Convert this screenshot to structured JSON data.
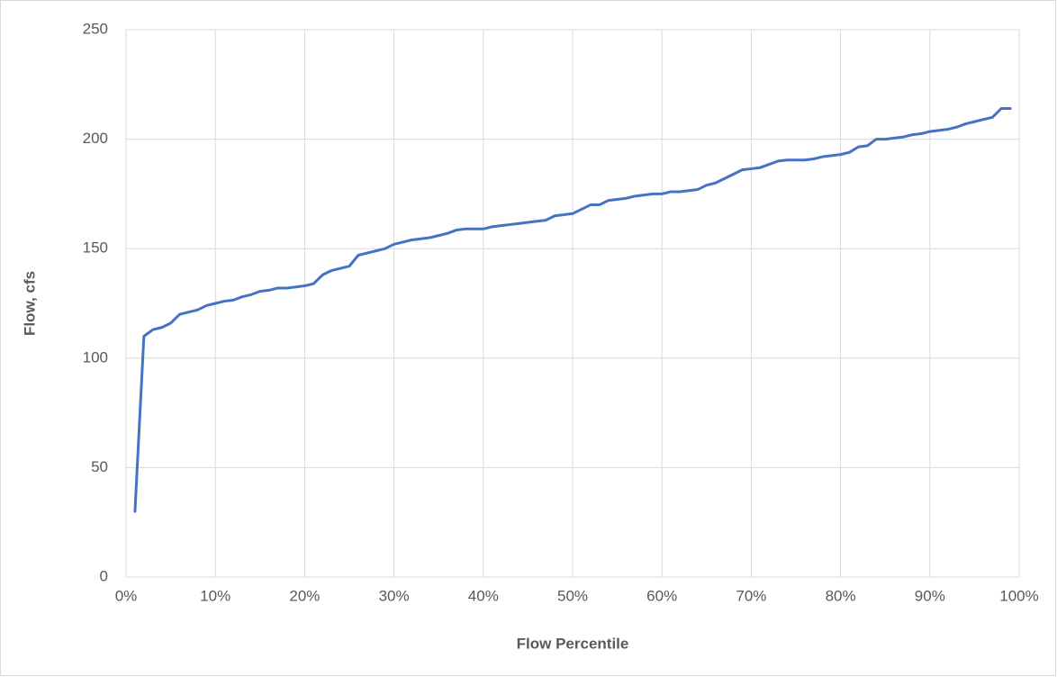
{
  "chart_data": {
    "type": "line",
    "x_label": "Flow Percentile",
    "y_label": "Flow, cfs",
    "x": [
      1,
      2,
      3,
      4,
      5,
      6,
      7,
      8,
      9,
      10,
      11,
      12,
      13,
      14,
      15,
      16,
      17,
      18,
      19,
      20,
      21,
      22,
      23,
      24,
      25,
      26,
      27,
      28,
      29,
      30,
      31,
      32,
      33,
      34,
      35,
      36,
      37,
      38,
      39,
      40,
      41,
      42,
      43,
      44,
      45,
      46,
      47,
      48,
      49,
      50,
      51,
      52,
      53,
      54,
      55,
      56,
      57,
      58,
      59,
      60,
      61,
      62,
      63,
      64,
      65,
      66,
      67,
      68,
      69,
      70,
      71,
      72,
      73,
      74,
      75,
      76,
      77,
      78,
      79,
      80,
      81,
      82,
      83,
      84,
      85,
      86,
      87,
      88,
      89,
      90,
      91,
      92,
      93,
      94,
      95,
      96,
      97,
      98,
      99
    ],
    "series": [
      {
        "name": "Flow",
        "color": "#4472c4",
        "values": [
          30,
          110,
          113,
          114,
          116,
          120,
          121,
          122,
          124,
          125,
          126,
          126.5,
          128,
          129,
          130.5,
          131,
          132,
          132,
          132.5,
          133,
          134,
          138,
          140,
          141,
          142,
          147,
          148,
          149,
          150,
          152,
          153,
          154,
          154.5,
          155,
          156,
          157,
          158.5,
          159,
          159,
          159,
          160,
          160.5,
          161,
          161.5,
          162,
          162.5,
          163,
          165,
          165.5,
          166,
          168,
          170,
          170,
          172,
          172.5,
          173,
          174,
          174.5,
          175,
          175,
          176,
          176,
          176.5,
          177,
          179,
          180,
          182,
          184,
          186,
          186.5,
          187,
          188.5,
          190,
          190.5,
          190.5,
          190.5,
          191,
          192,
          192.5,
          193,
          194,
          196.5,
          197,
          200,
          200,
          200.5,
          201,
          202,
          202.5,
          203.5,
          204,
          204.5,
          205.5,
          207,
          208,
          209,
          210,
          214,
          214
        ]
      }
    ],
    "xlim": [
      0,
      100
    ],
    "xticks": [
      {
        "value": 0,
        "label": "0%"
      },
      {
        "value": 10,
        "label": "10%"
      },
      {
        "value": 20,
        "label": "20%"
      },
      {
        "value": 30,
        "label": "30%"
      },
      {
        "value": 40,
        "label": "40%"
      },
      {
        "value": 50,
        "label": "50%"
      },
      {
        "value": 60,
        "label": "60%"
      },
      {
        "value": 70,
        "label": "70%"
      },
      {
        "value": 80,
        "label": "80%"
      },
      {
        "value": 90,
        "label": "90%"
      },
      {
        "value": 100,
        "label": "100%"
      }
    ],
    "ylim": [
      0,
      250
    ],
    "yticks": [
      0,
      50,
      100,
      150,
      200,
      250
    ],
    "grid": true
  }
}
